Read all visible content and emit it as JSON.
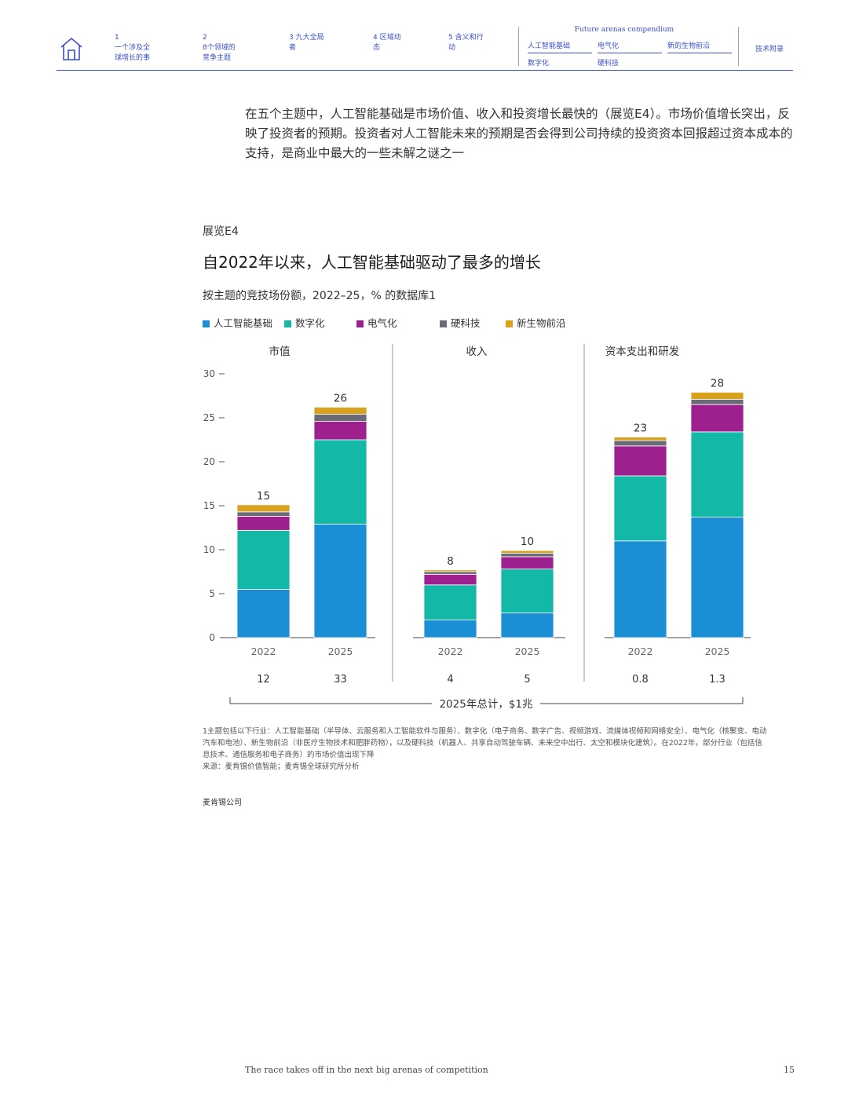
{
  "nav": {
    "items": [
      {
        "num": "1",
        "line1": "一个涉及全",
        "line2": "球增长的事"
      },
      {
        "num": "2",
        "line1": "8个领域的",
        "line2": "竞争主题"
      },
      {
        "num": "",
        "line1": "3 九大全局",
        "line2": "者"
      },
      {
        "num": "",
        "line1": "4 区域动",
        "line2": "态"
      },
      {
        "num": "",
        "line1": "5 含义和行",
        "line2": "动"
      }
    ],
    "compendium_title": "Future arenas compendium",
    "compendium_links": [
      "人工智能基础",
      "电气化",
      "新的生物前沿",
      "数字化",
      "硬科技"
    ],
    "appendix": "技术附录"
  },
  "intro_text": "在五个主题中，人工智能基础是市场价值、收入和投资增长最快的（展览E4）。市场价值增长突出，反映了投资者的预期。投资者对人工智能未来的预期是否会得到公司持续的投资资本回报超过资本成本的支持，是商业中最大的一些未解之谜之一",
  "exhibit": {
    "number": "展览E4",
    "title": "自2022年以来，人工智能基础驱动了最多的增长",
    "subtitle": "按主题的竞技场份额，2022–25，% 的数据库1"
  },
  "colors": {
    "ai": "#1a8fd6",
    "digital": "#14b8a6",
    "electrification": "#9e1f8e",
    "hardtech": "#6b6b78",
    "bio": "#d9a21e",
    "axis": "#444444",
    "text": "#333333"
  },
  "chart_data": {
    "type": "bar",
    "stacked": true,
    "ylim": [
      0,
      30
    ],
    "yticks": [
      0,
      5,
      10,
      15,
      20,
      25,
      30
    ],
    "legend": [
      {
        "name": "人工智能基础",
        "color_key": "ai"
      },
      {
        "name": "数字化",
        "color_key": "digital"
      },
      {
        "name": "电气化",
        "color_key": "electrification"
      },
      {
        "name": "硬科技",
        "color_key": "hardtech"
      },
      {
        "name": "新生物前沿",
        "color_key": "bio"
      }
    ],
    "legend_placement": "top-left",
    "panels": [
      {
        "title": "市值",
        "bars": [
          {
            "year": "2022",
            "total_label": "15",
            "bottom_label": "12",
            "segments": [
              5.5,
              6.7,
              1.6,
              0.5,
              0.8
            ]
          },
          {
            "year": "2025",
            "total_label": "26",
            "bottom_label": "33",
            "segments": [
              12.9,
              9.6,
              2.1,
              0.8,
              0.8
            ]
          }
        ]
      },
      {
        "title": "收入",
        "bars": [
          {
            "year": "2022",
            "total_label": "8",
            "bottom_label": "4",
            "segments": [
              2.0,
              4.0,
              1.2,
              0.3,
              0.2
            ]
          },
          {
            "year": "2025",
            "total_label": "10",
            "bottom_label": "5",
            "segments": [
              2.8,
              5.0,
              1.4,
              0.4,
              0.3
            ]
          }
        ]
      },
      {
        "title": "资本支出和研发",
        "bars": [
          {
            "year": "2022",
            "total_label": "23",
            "bottom_label": "0.8",
            "segments": [
              11.0,
              7.4,
              3.4,
              0.6,
              0.4
            ]
          },
          {
            "year": "2025",
            "total_label": "28",
            "bottom_label": "1.3",
            "segments": [
              13.7,
              9.7,
              3.1,
              0.6,
              0.8
            ]
          }
        ]
      }
    ],
    "total_note": "2025年总计，$1兆"
  },
  "footnotes": {
    "note1": "1主题包括以下行业：人工智能基础（半导体、云服务和人工智能软件与服务）、数字化（电子商务、数字广告、视频游戏、流媒体视频和网络安全）、电气化（核聚变、电动汽车和电池）、新生物前沿（非医疗生物技术和肥胖药物），以及硬科技（机器人、共享自动驾驶车辆、未来空中出行、太空和模块化建筑）。在2022年，部分行业（包括信息技术、通信服务和电子商务）的市场价值出现下降",
    "source": "来源：麦肯锡价值智能；麦肯锡全球研究所分析"
  },
  "company": "麦肯锡公司",
  "footer": {
    "text": "The race takes off in the next big arenas of competition",
    "page": "15"
  }
}
